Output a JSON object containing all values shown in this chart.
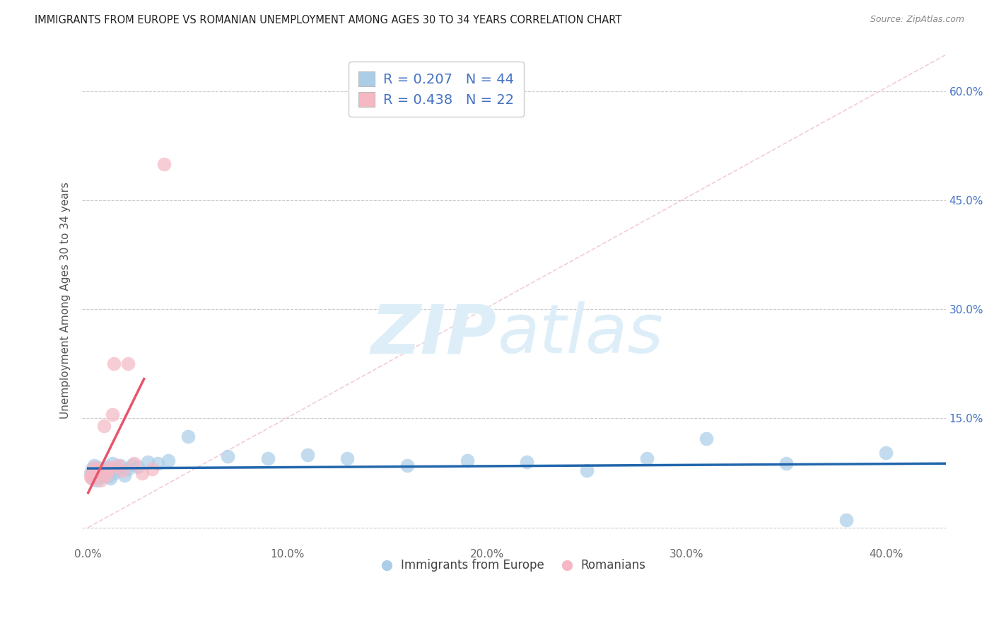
{
  "title": "IMMIGRANTS FROM EUROPE VS ROMANIAN UNEMPLOYMENT AMONG AGES 30 TO 34 YEARS CORRELATION CHART",
  "source": "Source: ZipAtlas.com",
  "xlabel_ticks": [
    "0.0%",
    "10.0%",
    "20.0%",
    "30.0%",
    "40.0%"
  ],
  "xlabel_vals": [
    0.0,
    0.1,
    0.2,
    0.3,
    0.4
  ],
  "ytick_vals": [
    0.0,
    0.15,
    0.3,
    0.45,
    0.6
  ],
  "ytick_labels_right": [
    "",
    "15.0%",
    "30.0%",
    "45.0%",
    "60.0%"
  ],
  "xlim": [
    -0.003,
    0.43
  ],
  "ylim": [
    -0.025,
    0.65
  ],
  "blue_R": "0.207",
  "blue_N": "44",
  "pink_R": "0.438",
  "pink_N": "22",
  "blue_marker_color": "#aacde8",
  "pink_marker_color": "#f5b8c4",
  "blue_line_color": "#2166ac",
  "pink_line_color": "#e8546a",
  "diag_line_color": "#f0c8d0",
  "legend_label_blue": "Immigrants from Europe",
  "legend_label_pink": "Romanians",
  "ylabel": "Unemployment Among Ages 30 to 34 years",
  "watermark_zip": "ZIP",
  "watermark_atlas": "atlas",
  "watermark_color": "#ddeef8",
  "title_color": "#222222",
  "source_color": "#888888",
  "axis_tick_color": "#4472c4",
  "grid_color": "#cccccc",
  "blue_x": [
    0.001,
    0.002,
    0.002,
    0.003,
    0.003,
    0.004,
    0.004,
    0.005,
    0.005,
    0.006,
    0.006,
    0.007,
    0.007,
    0.008,
    0.009,
    0.01,
    0.01,
    0.011,
    0.012,
    0.013,
    0.014,
    0.015,
    0.016,
    0.018,
    0.02,
    0.022,
    0.025,
    0.03,
    0.035,
    0.04,
    0.05,
    0.07,
    0.09,
    0.11,
    0.13,
    0.16,
    0.19,
    0.22,
    0.25,
    0.28,
    0.31,
    0.35,
    0.38,
    0.4
  ],
  "blue_y": [
    0.075,
    0.08,
    0.068,
    0.085,
    0.072,
    0.078,
    0.065,
    0.082,
    0.07,
    0.076,
    0.069,
    0.08,
    0.074,
    0.077,
    0.083,
    0.071,
    0.079,
    0.068,
    0.088,
    0.075,
    0.082,
    0.079,
    0.085,
    0.072,
    0.08,
    0.086,
    0.083,
    0.09,
    0.088,
    0.092,
    0.125,
    0.098,
    0.095,
    0.1,
    0.095,
    0.085,
    0.092,
    0.09,
    0.078,
    0.095,
    0.122,
    0.088,
    0.01,
    0.103
  ],
  "pink_x": [
    0.001,
    0.002,
    0.002,
    0.003,
    0.003,
    0.004,
    0.005,
    0.006,
    0.007,
    0.008,
    0.009,
    0.01,
    0.011,
    0.012,
    0.013,
    0.015,
    0.017,
    0.02,
    0.023,
    0.027,
    0.032,
    0.038
  ],
  "pink_y": [
    0.07,
    0.075,
    0.068,
    0.082,
    0.072,
    0.078,
    0.08,
    0.065,
    0.076,
    0.14,
    0.072,
    0.079,
    0.082,
    0.155,
    0.225,
    0.085,
    0.078,
    0.225,
    0.088,
    0.075,
    0.08,
    0.5
  ]
}
